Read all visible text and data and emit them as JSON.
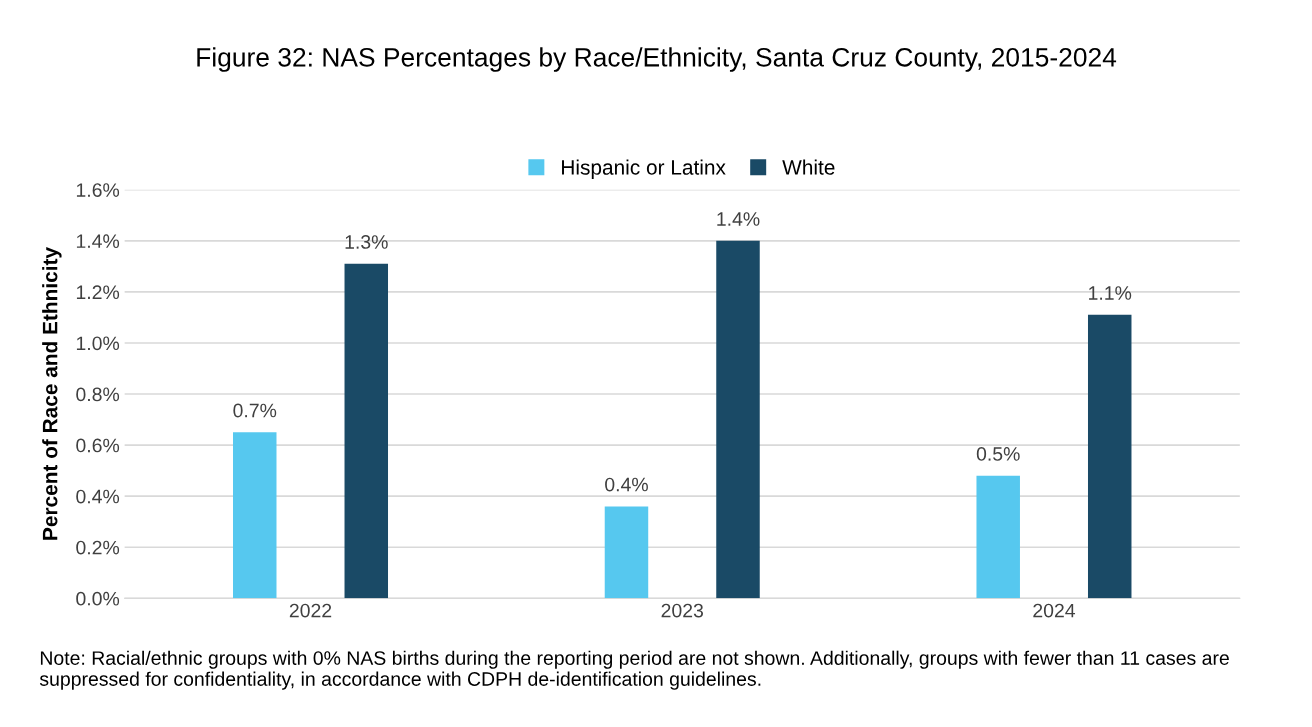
{
  "chart_data": {
    "type": "bar",
    "title": "Figure 32: NAS Percentages by Race/Ethnicity, Santa Cruz County, 2015-2024",
    "ylabel": "Percent of Race and Ethnicity",
    "categories": [
      "2022",
      "2023",
      "2024"
    ],
    "series": [
      {
        "name": "Hispanic or Latinx",
        "color": "#56c8ef",
        "values": [
          0.65,
          0.36,
          0.48
        ],
        "value_labels": [
          "0.7%",
          "0.4%",
          "0.5%"
        ]
      },
      {
        "name": "White",
        "color": "#1a4a66",
        "values": [
          1.31,
          1.4,
          1.11
        ],
        "value_labels": [
          "1.3%",
          "1.4%",
          "1.1%"
        ]
      }
    ],
    "ylim": [
      0,
      1.6
    ],
    "yticks": [
      {
        "value": 0,
        "label": "0.0%"
      },
      {
        "value": 0.2,
        "label": "0.2%"
      },
      {
        "value": 0.4,
        "label": "0.4%"
      },
      {
        "value": 0.6,
        "label": "0.6%"
      },
      {
        "value": 0.8,
        "label": "0.8%"
      },
      {
        "value": 1.0,
        "label": "1.0%"
      },
      {
        "value": 1.2,
        "label": "1.2%"
      },
      {
        "value": 1.4,
        "label": "1.4%"
      },
      {
        "value": 1.6,
        "label": "1.6%"
      }
    ],
    "grid": "y",
    "legend": "top",
    "annotations": [
      "Note: Racial/ethnic groups with 0% NAS births during the reporting period are not shown. Additionally, groups with fewer than 11 cases are suppressed for confidentiality, in accordance with CDPH de-identification guidelines."
    ]
  }
}
